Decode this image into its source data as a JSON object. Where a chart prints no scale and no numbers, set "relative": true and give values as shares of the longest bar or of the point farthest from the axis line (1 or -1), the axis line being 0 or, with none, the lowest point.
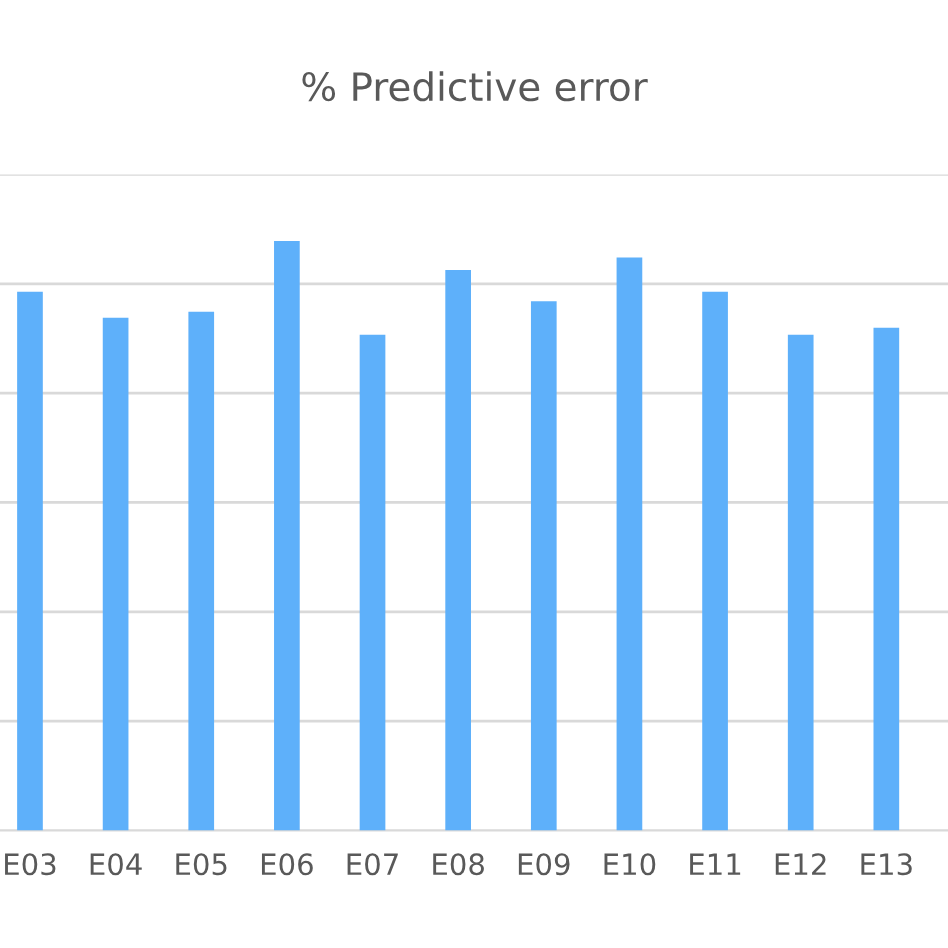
{
  "chart_data": {
    "type": "bar",
    "title": "% Predictive error",
    "categories": [
      "E03",
      "E04",
      "E05",
      "E06",
      "E07",
      "E08",
      "E09",
      "E10",
      "E11",
      "E12",
      "E13"
    ],
    "values": [
      0.914,
      0.87,
      0.88,
      1,
      0.841,
      0.951,
      0.898,
      0.972,
      0.914,
      0.841,
      0.853
    ],
    "color": "#5eb0fa",
    "relative": true,
    "grid": "y"
  }
}
